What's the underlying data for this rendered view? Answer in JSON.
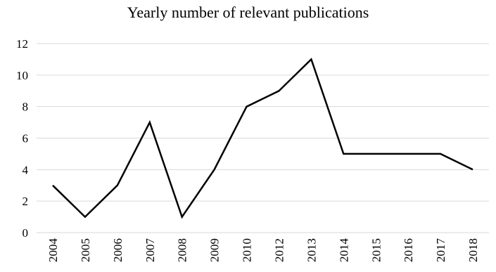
{
  "chart_data": {
    "type": "line",
    "title": "Yearly number of relevant publications",
    "xlabel": "",
    "ylabel": "",
    "categories": [
      "2004",
      "2005",
      "2006",
      "2007",
      "2008",
      "2009",
      "2010",
      "2012",
      "2013",
      "2014",
      "2015",
      "2016",
      "2017",
      "2018"
    ],
    "series": [
      {
        "values": [
          3,
          1,
          3,
          7,
          1,
          4,
          8,
          9,
          11,
          5,
          5,
          5,
          5,
          4
        ],
        "color": "#000000"
      }
    ],
    "ylim": [
      0,
      12
    ],
    "yticks": [
      0,
      2,
      4,
      6,
      8,
      10,
      12
    ],
    "grid": true,
    "gridColor": "#d9d9d9"
  }
}
